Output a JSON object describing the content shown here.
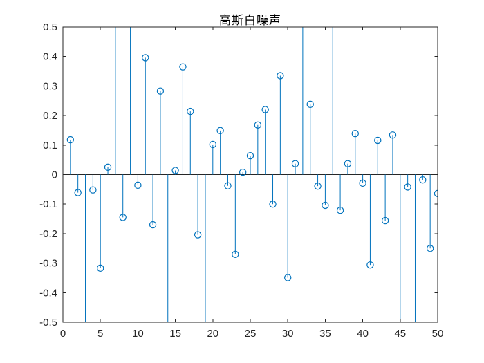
{
  "figure": {
    "background": "#ffffff"
  },
  "chart_data": {
    "type": "stem",
    "title": "高斯白噪声",
    "x_start": 1,
    "x_step": 1,
    "values": [
      0.118,
      -0.061,
      -0.62,
      -0.052,
      -0.317,
      0.025,
      0.58,
      -0.145,
      0.56,
      -0.036,
      0.396,
      -0.17,
      0.283,
      -0.6,
      0.014,
      0.365,
      0.214,
      -0.204,
      -0.56,
      0.102,
      0.149,
      -0.038,
      -0.27,
      0.008,
      0.064,
      0.168,
      0.22,
      -0.1,
      0.335,
      -0.349,
      0.037,
      0.57,
      0.238,
      -0.039,
      -0.104,
      0.6,
      -0.121,
      0.037,
      0.139,
      -0.029,
      -0.306,
      0.116,
      -0.156,
      0.134,
      -0.58,
      -0.042,
      -0.6,
      -0.018,
      -0.25,
      -0.064
    ],
    "clipped_above_x": [
      7,
      9,
      32,
      36
    ],
    "clipped_below_x": [
      3,
      14,
      19,
      45,
      47
    ],
    "xlabel": "",
    "ylabel": "",
    "xlim": [
      0,
      50
    ],
    "ylim": [
      -0.5,
      0.5
    ],
    "xticks": [
      0,
      5,
      10,
      15,
      20,
      25,
      30,
      35,
      40,
      45,
      50
    ],
    "xtick_labels": [
      "0",
      "5",
      "10",
      "15",
      "20",
      "25",
      "30",
      "35",
      "40",
      "45",
      "50"
    ],
    "yticks": [
      -0.5,
      -0.4,
      -0.3,
      -0.2,
      -0.1,
      0,
      0.1,
      0.2,
      0.3,
      0.4,
      0.5
    ],
    "ytick_labels": [
      "-0.5",
      "-0.4",
      "-0.3",
      "-0.2",
      "-0.1",
      "0",
      "0.1",
      "0.2",
      "0.3",
      "0.4",
      "0.5"
    ],
    "grid": false,
    "box": true,
    "tick_direction": "in",
    "baseline_y": 0,
    "marker": "open-circle",
    "legend": null,
    "colors": {
      "stem": "#0072BD",
      "axis": "#262626",
      "baseline": "#262626",
      "title": "#000000",
      "background": "#ffffff"
    }
  }
}
